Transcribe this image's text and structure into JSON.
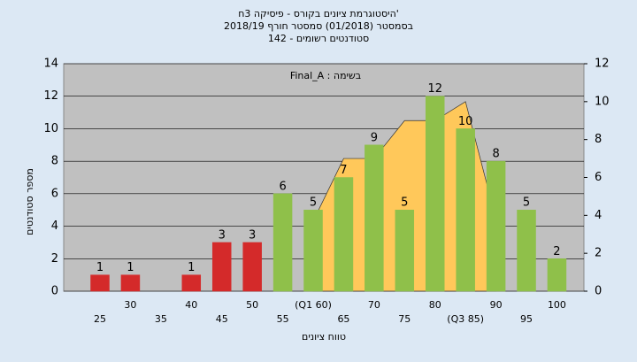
{
  "chart_data": {
    "type": "bar",
    "title": "היסטוגרמת ציונים בקורס - פיסיקה 3ח'",
    "subtitle": "בסמסטר (01/2018) סמסטר חורף 2018/19",
    "subtitle2": "סטודנטים רשומים - 142",
    "annotation": "Final_A : בשימה",
    "x_label": "טווח ציונים",
    "y_label": "מספר סטודנטים",
    "categories": [
      "25",
      "30",
      "35",
      "40",
      "45",
      "50",
      "55",
      "(Q1 60)",
      "65",
      "70",
      "75",
      "80",
      "(Q3 85)",
      "90",
      "95",
      "100"
    ],
    "series": [
      {
        "values": [
          1,
          1,
          0,
          1,
          3,
          3,
          6,
          5,
          7,
          9,
          5,
          12,
          10,
          8,
          5,
          2
        ],
        "colors": [
          "#d42a2a",
          "#d42a2a",
          "#d42a2a",
          "#d42a2a",
          "#d42a2a",
          "#d42a2a",
          "#8fc04a",
          "#8fc04a",
          "#8fc04a",
          "#8fc04a",
          "#8fc04a",
          "#8fc04a",
          "#8fc04a",
          "#8fc04a",
          "#8fc04a",
          "#8fc04a"
        ]
      },
      {
        "axis": "y2",
        "color": "#ffc85a",
        "values": [
          null,
          null,
          null,
          null,
          null,
          null,
          null,
          3.7,
          7,
          7,
          9,
          9,
          10,
          3.8,
          null,
          null
        ]
      }
    ],
    "ylim": [
      0,
      14
    ],
    "yticks": [
      0,
      2,
      4,
      6,
      8,
      10,
      12,
      14
    ],
    "y2lim": [
      0,
      12
    ],
    "y2ticks": [
      0,
      2,
      4,
      6,
      8,
      10,
      12
    ],
    "grid": true
  }
}
